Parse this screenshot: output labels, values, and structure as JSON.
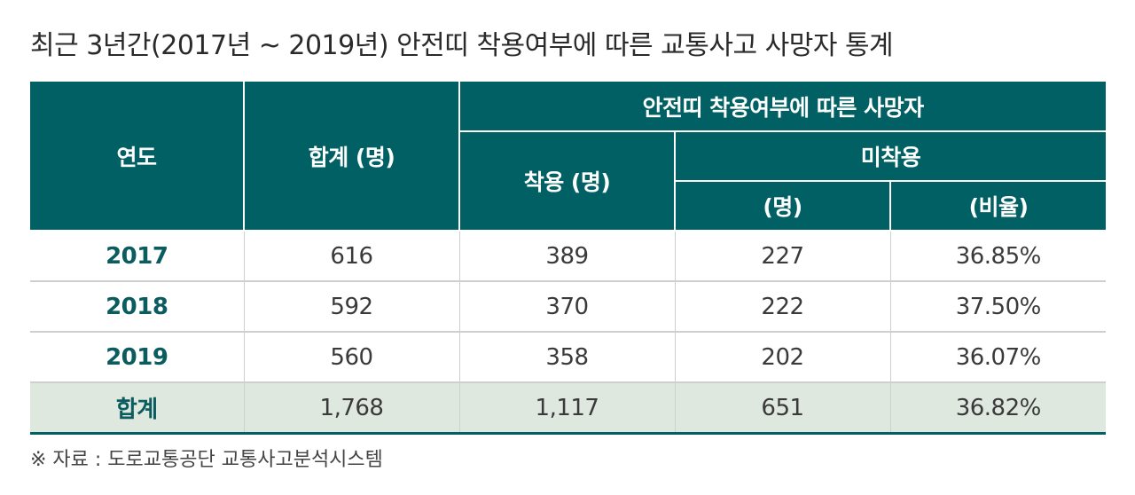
{
  "title": "최근 3년간(2017년 ~ 2019년) 안전띠 착용여부에 따른 교통사고 사망자 통계",
  "header": {
    "year": "연도",
    "total": "합계 (명)",
    "group": "안전띠 착용여부에 따른 사망자",
    "worn": "착용 (명)",
    "not_worn": "미착용",
    "not_worn_count": "(명)",
    "not_worn_ratio": "(비율)"
  },
  "rows": [
    {
      "year": "2017",
      "total": "616",
      "worn": "389",
      "not_worn": "227",
      "ratio": "36.85%"
    },
    {
      "year": "2018",
      "total": "592",
      "worn": "370",
      "not_worn": "222",
      "ratio": "37.50%"
    },
    {
      "year": "2019",
      "total": "560",
      "worn": "358",
      "not_worn": "202",
      "ratio": "36.07%"
    }
  ],
  "total_row": {
    "year": "합계",
    "total": "1,768",
    "worn": "1,117",
    "not_worn": "651",
    "ratio": "36.82%"
  },
  "source": "※ 자료 : 도로교통공단 교통사고분석시스템",
  "colors": {
    "header_bg": "#006064",
    "year_text": "#0b5c5f",
    "total_row_bg": "#dfe8df"
  }
}
